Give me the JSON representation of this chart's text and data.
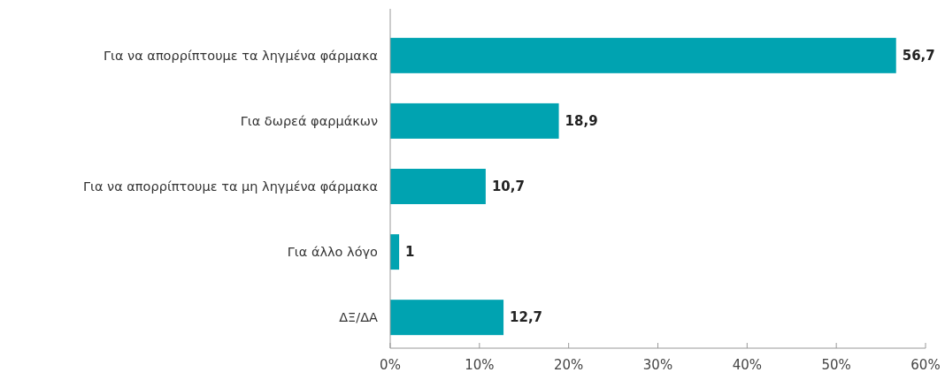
{
  "chart_data": {
    "type": "bar",
    "orientation": "horizontal",
    "categories": [
      "Για να απορρίπτουμε τα ληγμένα φάρμακα",
      "Για δωρεά φαρμάκων",
      "Για να απορρίπτουμε τα μη ληγμένα φάρμακα",
      "Για άλλο λόγο",
      "ΔΞ/ΔΑ"
    ],
    "values": [
      56.7,
      18.9,
      10.7,
      1,
      12.7
    ],
    "value_labels": [
      "56,7",
      "18,9",
      "10,7",
      "1",
      "12,7"
    ],
    "color": "#00a3b1",
    "xlim": [
      0,
      60
    ],
    "xticks": [
      {
        "value": 0,
        "label": "0%"
      },
      {
        "value": 10,
        "label": "10%"
      },
      {
        "value": 20,
        "label": "20%"
      },
      {
        "value": 30,
        "label": "30%"
      },
      {
        "value": 40,
        "label": "40%"
      },
      {
        "value": 50,
        "label": "50%"
      },
      {
        "value": 60,
        "label": "60%"
      }
    ],
    "grid": false
  }
}
